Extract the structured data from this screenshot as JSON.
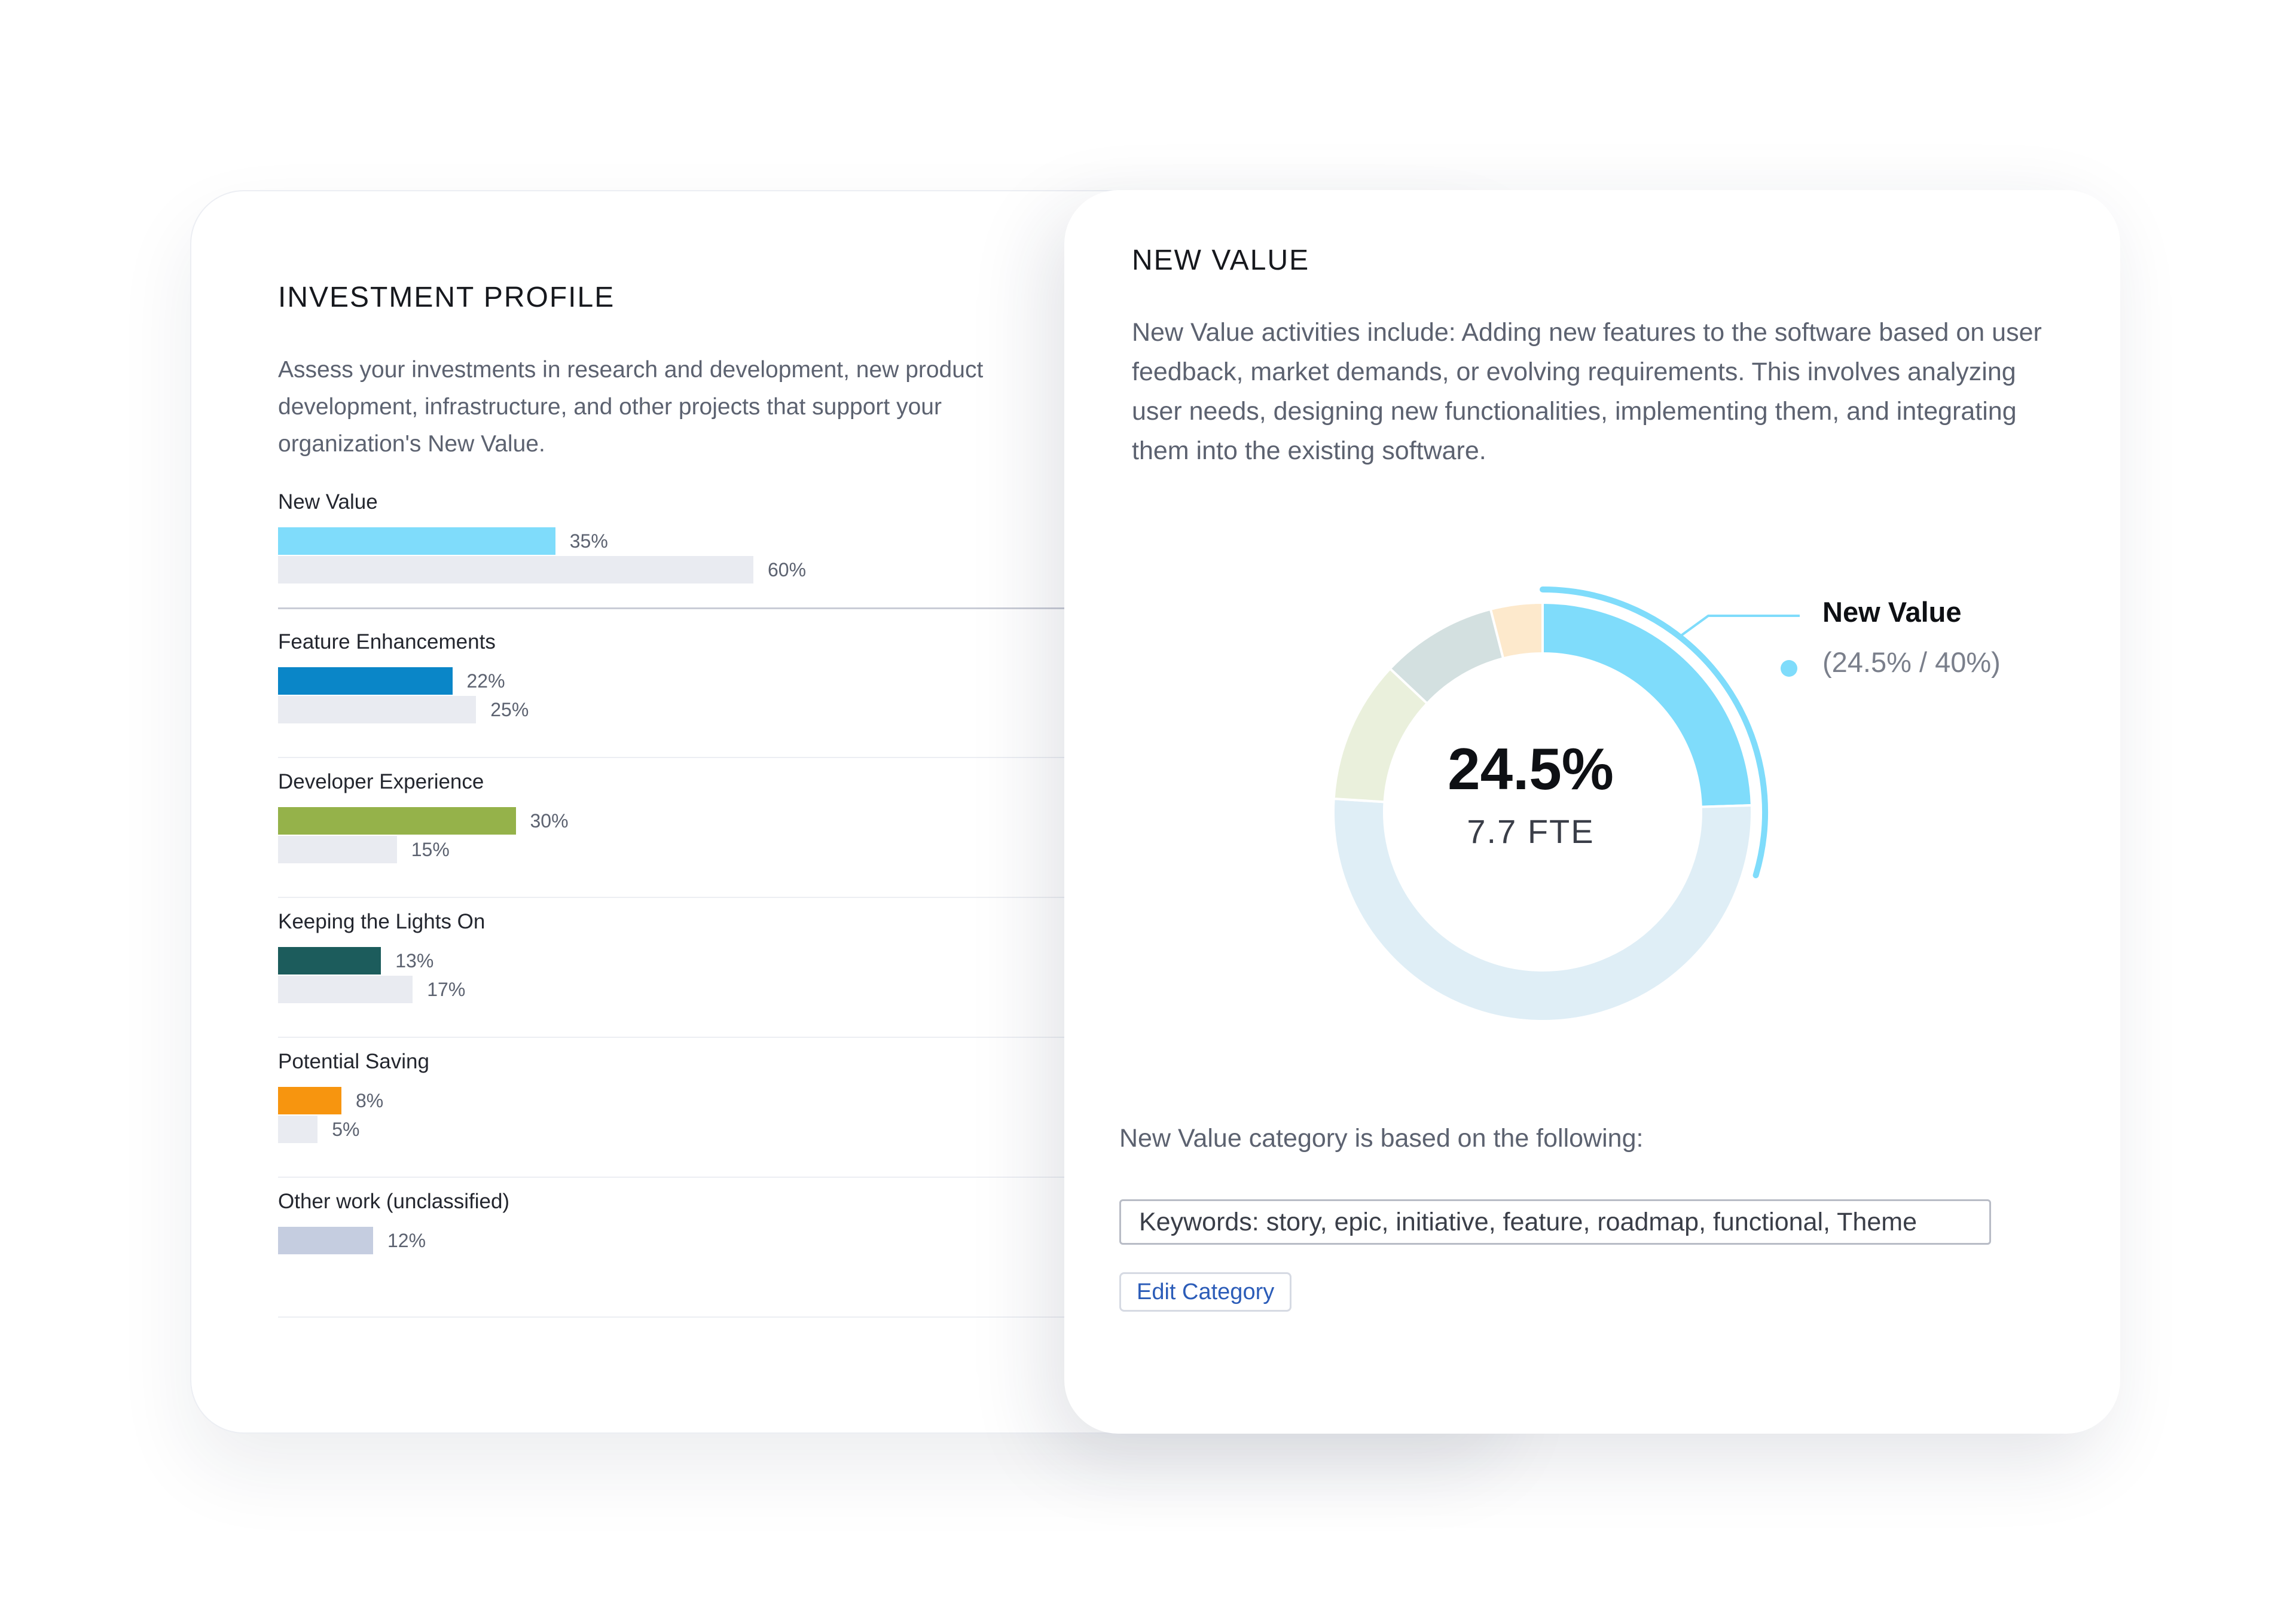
{
  "investment_profile": {
    "title": "INVESTMENT PROFILE",
    "description": "Assess your investments in research and development, new product development, infrastructure, and other projects that support your organization's New Value.",
    "items": [
      {
        "label": "New Value",
        "actual_pct": 35,
        "actual_label": "35%",
        "target_pct": 60,
        "target_label": "60%",
        "color": "#7fdcfb"
      },
      {
        "label": "Feature Enhancements",
        "actual_pct": 22,
        "actual_label": "22%",
        "target_pct": 25,
        "target_label": "25%",
        "color": "#0a86c8"
      },
      {
        "label": "Developer Experience",
        "actual_pct": 30,
        "actual_label": "30%",
        "target_pct": 15,
        "target_label": "15%",
        "color": "#95b24a"
      },
      {
        "label": "Keeping the Lights On",
        "actual_pct": 13,
        "actual_label": "13%",
        "target_pct": 17,
        "target_label": "17%",
        "color": "#1c5c5c"
      },
      {
        "label": "Potential Saving",
        "actual_pct": 8,
        "actual_label": "8%",
        "target_pct": 5,
        "target_label": "5%",
        "color": "#f7950f"
      },
      {
        "label": "Other work (unclassified)",
        "actual_pct": 12,
        "actual_label": "12%",
        "target_pct": null,
        "target_label": null,
        "color": "#c5cde0"
      }
    ]
  },
  "new_value": {
    "title": "NEW VALUE",
    "description": "New Value activities include: Adding new features to the software based on user feedback, market demands, or evolving requirements. This involves analyzing user needs, designing new functionalities, implementing them, and integrating them into the existing software.",
    "center_value": "24.5%",
    "center_sub": "7.7 FTE",
    "legend_name": "New Value",
    "legend_value": "(24.5% / 40%)",
    "basis_text": "New Value category is based on the following:",
    "keywords": "Keywords: story, epic, initiative, feature, roadmap, functional, Theme",
    "edit_button": "Edit Category"
  },
  "chart_data": {
    "type": "pie",
    "slices": [
      {
        "name": "New Value",
        "value": 24.5,
        "color": "#7fdcfb"
      },
      {
        "name": "",
        "value": 51.5,
        "color": "#dfeef6"
      },
      {
        "name": "",
        "value": 11,
        "color": "#eaf0dc"
      },
      {
        "name": "",
        "value": 9,
        "color": "#d3e0e0"
      },
      {
        "name": "",
        "value": 4,
        "color": "#fde9cc"
      }
    ],
    "target_arc": {
      "name": "New Value",
      "value": 40,
      "color": "#7fdcfb"
    },
    "title": "",
    "center_label": "24.5%",
    "center_sublabel": "7.7 FTE"
  },
  "colors": {
    "target_bar": "#e9ebf1",
    "accent": "#7fdcfb",
    "link": "#2b5cb8"
  }
}
